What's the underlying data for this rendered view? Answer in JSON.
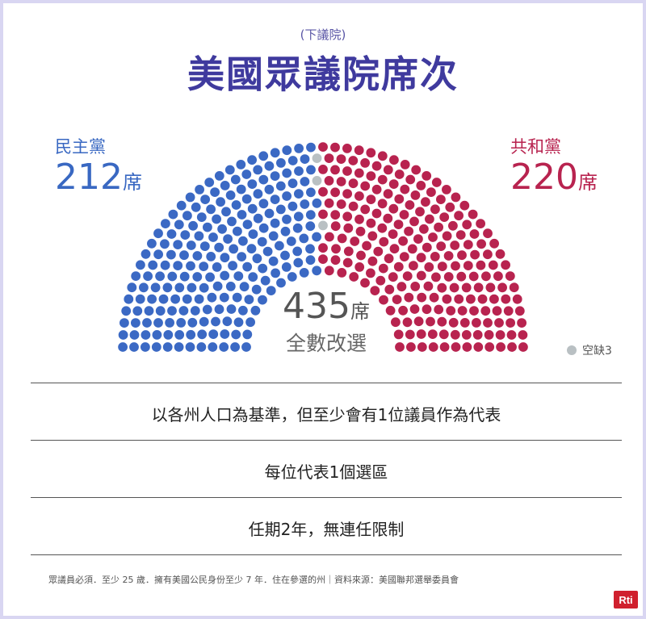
{
  "header": {
    "subtitle": "(下議院)",
    "title": "美國眾議院席次"
  },
  "chart_data": {
    "type": "hemicycle",
    "total_seats": 435,
    "groups": [
      {
        "name": "民主黨",
        "seats": 212,
        "color": "#3b69c4",
        "side": "left"
      },
      {
        "name": "空缺",
        "seats": 3,
        "color": "#b9c0c3",
        "side": "center"
      },
      {
        "name": "共和黨",
        "seats": 220,
        "color": "#b8234f",
        "side": "right"
      }
    ]
  },
  "labels": {
    "dem_name": "民主黨",
    "dem_seats": "212",
    "rep_name": "共和黨",
    "rep_seats": "220",
    "seat_unit": "席",
    "total": "435",
    "total_note": "全數改選",
    "vacant_label": "空缺3"
  },
  "facts": [
    "以各州人口為基準，但至少會有1位議員作為代表",
    "每位代表1個選區",
    "任期2年，無連任限制"
  ],
  "footnote": "眾議員必須．至少 25 歲．擁有美國公民身份至少 7 年．住在參選的州｜資料來源：美國聯邦選舉委員會",
  "logo_text": "Rti"
}
